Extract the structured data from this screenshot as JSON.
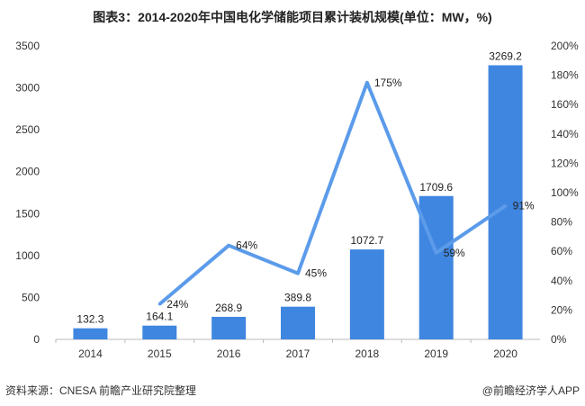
{
  "chart_data": {
    "type": "bar+line",
    "title": "图表3：2014-2020年中国电化学储能项目累计装机规模(单位：MW，%)",
    "categories": [
      "2014",
      "2015",
      "2016",
      "2017",
      "2018",
      "2019",
      "2020"
    ],
    "series": [
      {
        "type": "bar",
        "axis": "left",
        "values": [
          132.3,
          164.1,
          268.9,
          389.8,
          1072.7,
          1709.6,
          3269.2
        ],
        "labels": [
          "132.3",
          "164.1",
          "268.9",
          "389.8",
          "1072.7",
          "1709.6",
          "3269.2"
        ]
      },
      {
        "type": "line",
        "axis": "right",
        "values": [
          null,
          24,
          64,
          45,
          175,
          59,
          91
        ],
        "labels": [
          "",
          "24%",
          "64%",
          "45%",
          "175%",
          "59%",
          "91%"
        ]
      }
    ],
    "left_axis": {
      "ylim": [
        0,
        3500
      ],
      "ticks": [
        "0",
        "500",
        "1000",
        "1500",
        "2000",
        "2500",
        "3000",
        "3500"
      ]
    },
    "right_axis": {
      "ylim": [
        0,
        200
      ],
      "ticks": [
        "0%",
        "20%",
        "40%",
        "60%",
        "80%",
        "100%",
        "120%",
        "140%",
        "160%",
        "180%",
        "200%"
      ]
    },
    "grid": false,
    "colors": {
      "bar": "#3f86e0",
      "line": "#5b9bea"
    }
  },
  "footer": {
    "source": "资料来源：CNESA 前瞻产业研究院整理",
    "brand": "@前瞻经济学人APP"
  }
}
